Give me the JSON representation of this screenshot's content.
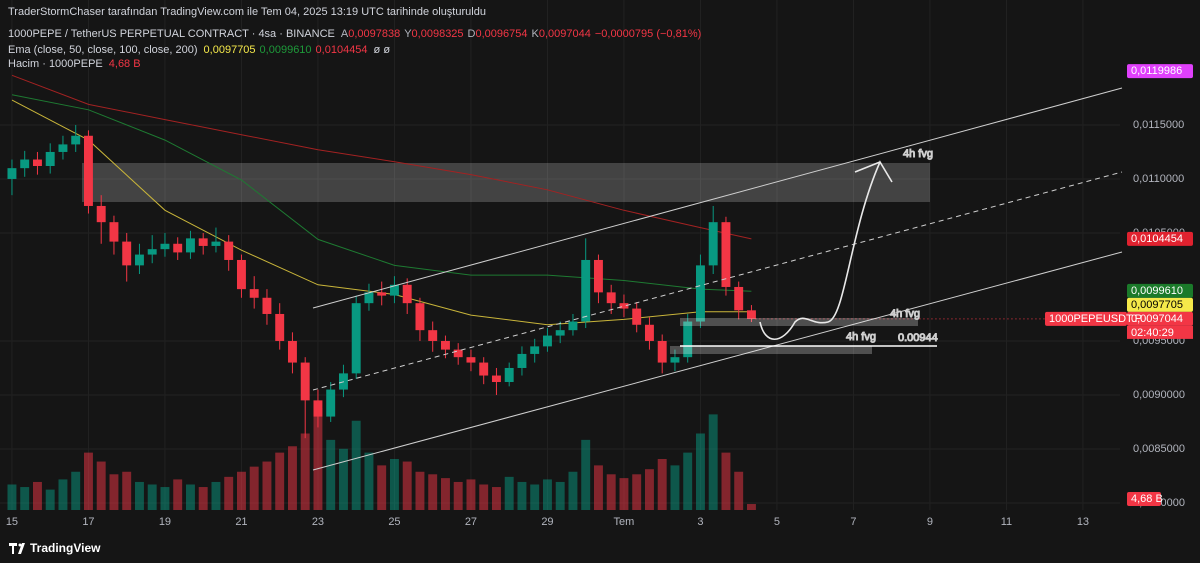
{
  "header": {
    "credit": "TraderStormChaser tarafından TradingView.com ile Tem 04, 2025 13:19 UTC tarihinde oluşturuldu",
    "symbol": "1000PEPE / TetherUS PERPETUAL CONTRACT · 4sa · BINANCE",
    "ohlc": [
      {
        "key": "A",
        "value": "0,0097838"
      },
      {
        "key": "Y",
        "value": "0,0098325"
      },
      {
        "key": "D",
        "value": "0,0096754"
      },
      {
        "key": "K",
        "value": "0,0097044"
      }
    ],
    "change": "−0,0000795 (−0,81%)",
    "ema_label": "Ema (close, 50, close, 100, close, 200)",
    "ema_values": [
      "0,0097705",
      "0,0099610",
      "0,0104454"
    ],
    "ema_flags": "ø ø",
    "volume_label": "Hacim · 1000PEPE",
    "volume_value": "4,68 B"
  },
  "chart_data": {
    "type": "candlestick",
    "x": [
      "2025-06-15T00:00",
      "2025-06-15T08:00",
      "2025-06-15T16:00",
      "2025-06-16T00:00",
      "2025-06-16T08:00",
      "2025-06-16T16:00",
      "2025-06-17T00:00",
      "2025-06-17T08:00",
      "2025-06-17T16:00",
      "2025-06-18T00:00",
      "2025-06-18T08:00",
      "2025-06-18T16:00",
      "2025-06-19T00:00",
      "2025-06-19T08:00",
      "2025-06-19T16:00",
      "2025-06-20T00:00",
      "2025-06-20T08:00",
      "2025-06-20T16:00",
      "2025-06-21T00:00",
      "2025-06-21T08:00",
      "2025-06-21T16:00",
      "2025-06-22T00:00",
      "2025-06-22T08:00",
      "2025-06-22T16:00",
      "2025-06-23T00:00",
      "2025-06-23T08:00",
      "2025-06-23T16:00",
      "2025-06-24T00:00",
      "2025-06-24T08:00",
      "2025-06-24T16:00",
      "2025-06-25T00:00",
      "2025-06-25T08:00",
      "2025-06-25T16:00",
      "2025-06-26T00:00",
      "2025-06-26T08:00",
      "2025-06-26T16:00",
      "2025-06-27T00:00",
      "2025-06-27T08:00",
      "2025-06-27T16:00",
      "2025-06-28T00:00",
      "2025-06-28T08:00",
      "2025-06-28T16:00",
      "2025-06-29T00:00",
      "2025-06-29T08:00",
      "2025-06-29T16:00",
      "2025-06-30T00:00",
      "2025-06-30T08:00",
      "2025-06-30T16:00",
      "2025-07-01T00:00",
      "2025-07-01T08:00",
      "2025-07-01T16:00",
      "2025-07-02T00:00",
      "2025-07-02T08:00",
      "2025-07-02T16:00",
      "2025-07-03T00:00",
      "2025-07-03T08:00",
      "2025-07-03T16:00",
      "2025-07-04T00:00",
      "2025-07-04T08:00"
    ],
    "open": [
      0.011,
      0.0111,
      0.01118,
      0.01112,
      0.01125,
      0.01132,
      0.0114,
      0.01075,
      0.0106,
      0.01042,
      0.0102,
      0.0103,
      0.01035,
      0.0104,
      0.01032,
      0.01045,
      0.01038,
      0.01042,
      0.01025,
      0.00998,
      0.0099,
      0.00975,
      0.0095,
      0.0093,
      0.00895,
      0.0088,
      0.00905,
      0.0092,
      0.00985,
      0.00995,
      0.00992,
      0.01002,
      0.00985,
      0.0096,
      0.0095,
      0.00942,
      0.00935,
      0.0093,
      0.00918,
      0.00912,
      0.00925,
      0.00938,
      0.00945,
      0.00955,
      0.0096,
      0.00968,
      0.01025,
      0.00995,
      0.00985,
      0.0098,
      0.00965,
      0.0095,
      0.0093,
      0.00935,
      0.00968,
      0.0102,
      0.0106,
      0.01,
      0.0097838
    ],
    "high": [
      0.01118,
      0.01126,
      0.01125,
      0.01133,
      0.0114,
      0.0115,
      0.01145,
      0.01085,
      0.01066,
      0.0105,
      0.0104,
      0.01048,
      0.0105,
      0.01046,
      0.01052,
      0.0105,
      0.01055,
      0.01048,
      0.0103,
      0.0101,
      0.00998,
      0.00985,
      0.00958,
      0.00935,
      0.00905,
      0.00912,
      0.00928,
      0.00992,
      0.01003,
      0.01005,
      0.0101,
      0.01008,
      0.0099,
      0.00968,
      0.00955,
      0.00948,
      0.00942,
      0.00935,
      0.00925,
      0.0093,
      0.00945,
      0.00952,
      0.00962,
      0.00968,
      0.00975,
      0.01045,
      0.0103,
      0.01002,
      0.00993,
      0.00986,
      0.00972,
      0.00956,
      0.00942,
      0.00975,
      0.0103,
      0.01075,
      0.01065,
      0.01005,
      0.0098325
    ],
    "low": [
      0.01085,
      0.01102,
      0.01104,
      0.01105,
      0.01118,
      0.01125,
      0.01068,
      0.0104,
      0.0103,
      0.01005,
      0.01012,
      0.01022,
      0.01028,
      0.01025,
      0.01026,
      0.0103,
      0.01032,
      0.01015,
      0.0099,
      0.0098,
      0.00965,
      0.00942,
      0.0092,
      0.0086,
      0.0087,
      0.00875,
      0.00898,
      0.00915,
      0.00978,
      0.00983,
      0.00985,
      0.00975,
      0.0095,
      0.0094,
      0.00934,
      0.00928,
      0.00922,
      0.0091,
      0.009,
      0.00908,
      0.00918,
      0.0093,
      0.0094,
      0.00948,
      0.00955,
      0.00962,
      0.00985,
      0.00975,
      0.00972,
      0.00958,
      0.00942,
      0.0092,
      0.00922,
      0.0093,
      0.00962,
      0.01012,
      0.00992,
      0.0097,
      0.0096754
    ],
    "close": [
      0.0111,
      0.01118,
      0.01112,
      0.01125,
      0.01132,
      0.0114,
      0.01075,
      0.0106,
      0.01042,
      0.0102,
      0.0103,
      0.01035,
      0.0104,
      0.01032,
      0.01045,
      0.01038,
      0.01042,
      0.01025,
      0.00998,
      0.0099,
      0.00975,
      0.0095,
      0.0093,
      0.00895,
      0.0088,
      0.00905,
      0.0092,
      0.00985,
      0.00995,
      0.00992,
      0.01002,
      0.00985,
      0.0096,
      0.0095,
      0.00942,
      0.00935,
      0.0093,
      0.00918,
      0.00912,
      0.00925,
      0.00938,
      0.00945,
      0.00955,
      0.0096,
      0.00968,
      0.01025,
      0.00995,
      0.00985,
      0.0098,
      0.00965,
      0.0095,
      0.0093,
      0.00935,
      0.00968,
      0.0102,
      0.0106,
      0.01,
      0.0097838,
      0.0097044
    ],
    "volume": [
      20,
      18,
      22,
      16,
      24,
      30,
      45,
      38,
      28,
      30,
      22,
      20,
      18,
      24,
      20,
      18,
      22,
      26,
      30,
      34,
      38,
      45,
      50,
      60,
      80,
      55,
      48,
      70,
      45,
      35,
      40,
      38,
      30,
      28,
      25,
      22,
      24,
      20,
      18,
      26,
      22,
      20,
      24,
      22,
      30,
      55,
      35,
      28,
      25,
      28,
      32,
      40,
      35,
      45,
      60,
      75,
      45,
      30,
      4.68
    ],
    "volume_lim": [
      0,
      400
    ],
    "volume_value_label": "4,68 B",
    "up_color": "#089981",
    "down_color": "#f23645",
    "ema_lines": [
      {
        "color": "#c9b53a",
        "x": [
          "2025-06-15T00:00",
          "2025-06-17T00:00",
          "2025-06-19T00:00",
          "2025-06-21T00:00",
          "2025-06-23T00:00",
          "2025-06-25T00:00",
          "2025-06-27T00:00",
          "2025-06-29T00:00",
          "2025-07-01T00:00",
          "2025-07-03T00:00",
          "2025-07-04T08:00"
        ],
        "values": [
          0.01173,
          0.01136,
          0.01071,
          0.01034,
          0.01002,
          0.00993,
          0.00974,
          0.00965,
          0.0097,
          0.00977,
          0.0097705
        ]
      },
      {
        "color": "#1e7a32",
        "x": [
          "2025-06-15T00:00",
          "2025-06-17T00:00",
          "2025-06-19T00:00",
          "2025-06-21T00:00",
          "2025-06-23T00:00",
          "2025-06-25T00:00",
          "2025-06-27T00:00",
          "2025-06-29T00:00",
          "2025-07-01T00:00",
          "2025-07-03T00:00",
          "2025-07-04T08:00"
        ],
        "values": [
          0.01178,
          0.01164,
          0.01136,
          0.01099,
          0.01044,
          0.0102,
          0.01011,
          0.01011,
          0.01006,
          0.00998,
          0.009961
        ]
      },
      {
        "color": "#a32222",
        "x": [
          "2025-06-15T00:00",
          "2025-06-17T00:00",
          "2025-06-19T00:00",
          "2025-06-21T00:00",
          "2025-06-23T00:00",
          "2025-06-25T00:00",
          "2025-06-27T00:00",
          "2025-06-29T00:00",
          "2025-07-01T00:00",
          "2025-07-03T00:00",
          "2025-07-04T08:00"
        ],
        "values": [
          0.01196,
          0.01169,
          0.01155,
          0.01141,
          0.01127,
          0.01116,
          0.01104,
          0.0109,
          0.01071,
          0.01055,
          0.0104454
        ]
      }
    ],
    "xlim": [
      "2025-06-14T16:30",
      "2025-07-13T23:15"
    ],
    "xticks": [
      {
        "value": "2025-06-15T00:00",
        "label": "15"
      },
      {
        "value": "2025-06-17T00:00",
        "label": "17"
      },
      {
        "value": "2025-06-19T00:00",
        "label": "19"
      },
      {
        "value": "2025-06-21T00:00",
        "label": "21"
      },
      {
        "value": "2025-06-23T00:00",
        "label": "23"
      },
      {
        "value": "2025-06-25T00:00",
        "label": "25"
      },
      {
        "value": "2025-06-27T00:00",
        "label": "27"
      },
      {
        "value": "2025-06-29T00:00",
        "label": "29"
      },
      {
        "value": "2025-07-01T00:00",
        "label": "Tem"
      },
      {
        "value": "2025-07-03T00:00",
        "label": "3"
      },
      {
        "value": "2025-07-05T00:00",
        "label": "5"
      },
      {
        "value": "2025-07-07T00:00",
        "label": "7"
      },
      {
        "value": "2025-07-09T00:00",
        "label": "9"
      },
      {
        "value": "2025-07-11T00:00",
        "label": "11"
      },
      {
        "value": "2025-07-13T00:00",
        "label": "13"
      }
    ],
    "ylim": [
      0.007935,
      0.012657
    ],
    "yticks": [
      {
        "value": 0.0115,
        "label": "0,0115000"
      },
      {
        "value": 0.011,
        "label": "0,0110000"
      },
      {
        "value": 0.0105,
        "label": "0,0105000"
      },
      {
        "value": 0.0095,
        "label": "0,0095000"
      },
      {
        "value": 0.009,
        "label": "0,0090000"
      },
      {
        "value": 0.0085,
        "label": "0,0085000"
      },
      {
        "value": 0.008,
        "label": "0,0080000"
      }
    ],
    "grid": true,
    "price_labels": [
      {
        "value": 0.0119986,
        "label": "0,0119986",
        "color": "#e040fb",
        "text_color": "#ffffff"
      },
      {
        "value": 0.0104454,
        "label": "0,0104454",
        "color": "#e0222f",
        "text_color": "#ffffff"
      },
      {
        "value": 0.009961,
        "label": "0,0099610",
        "color": "#1b7a2a",
        "text_color": "#ffffff"
      },
      {
        "value": 0.0097705,
        "label": "0,0097705",
        "color": "#f5e94a",
        "text_color": "#000000"
      },
      {
        "value": 0.0097044,
        "label": "0,0097044",
        "color": "#f23645",
        "text_color": "#ffffff"
      }
    ],
    "symbol_label": "1000PEPEUSDT.P",
    "countdown": "02:40:29",
    "annotations": [
      "4h fvg",
      "4h fvg",
      "4h fvg",
      "0.00944"
    ]
  },
  "footer": {
    "brand": "TradingView"
  }
}
